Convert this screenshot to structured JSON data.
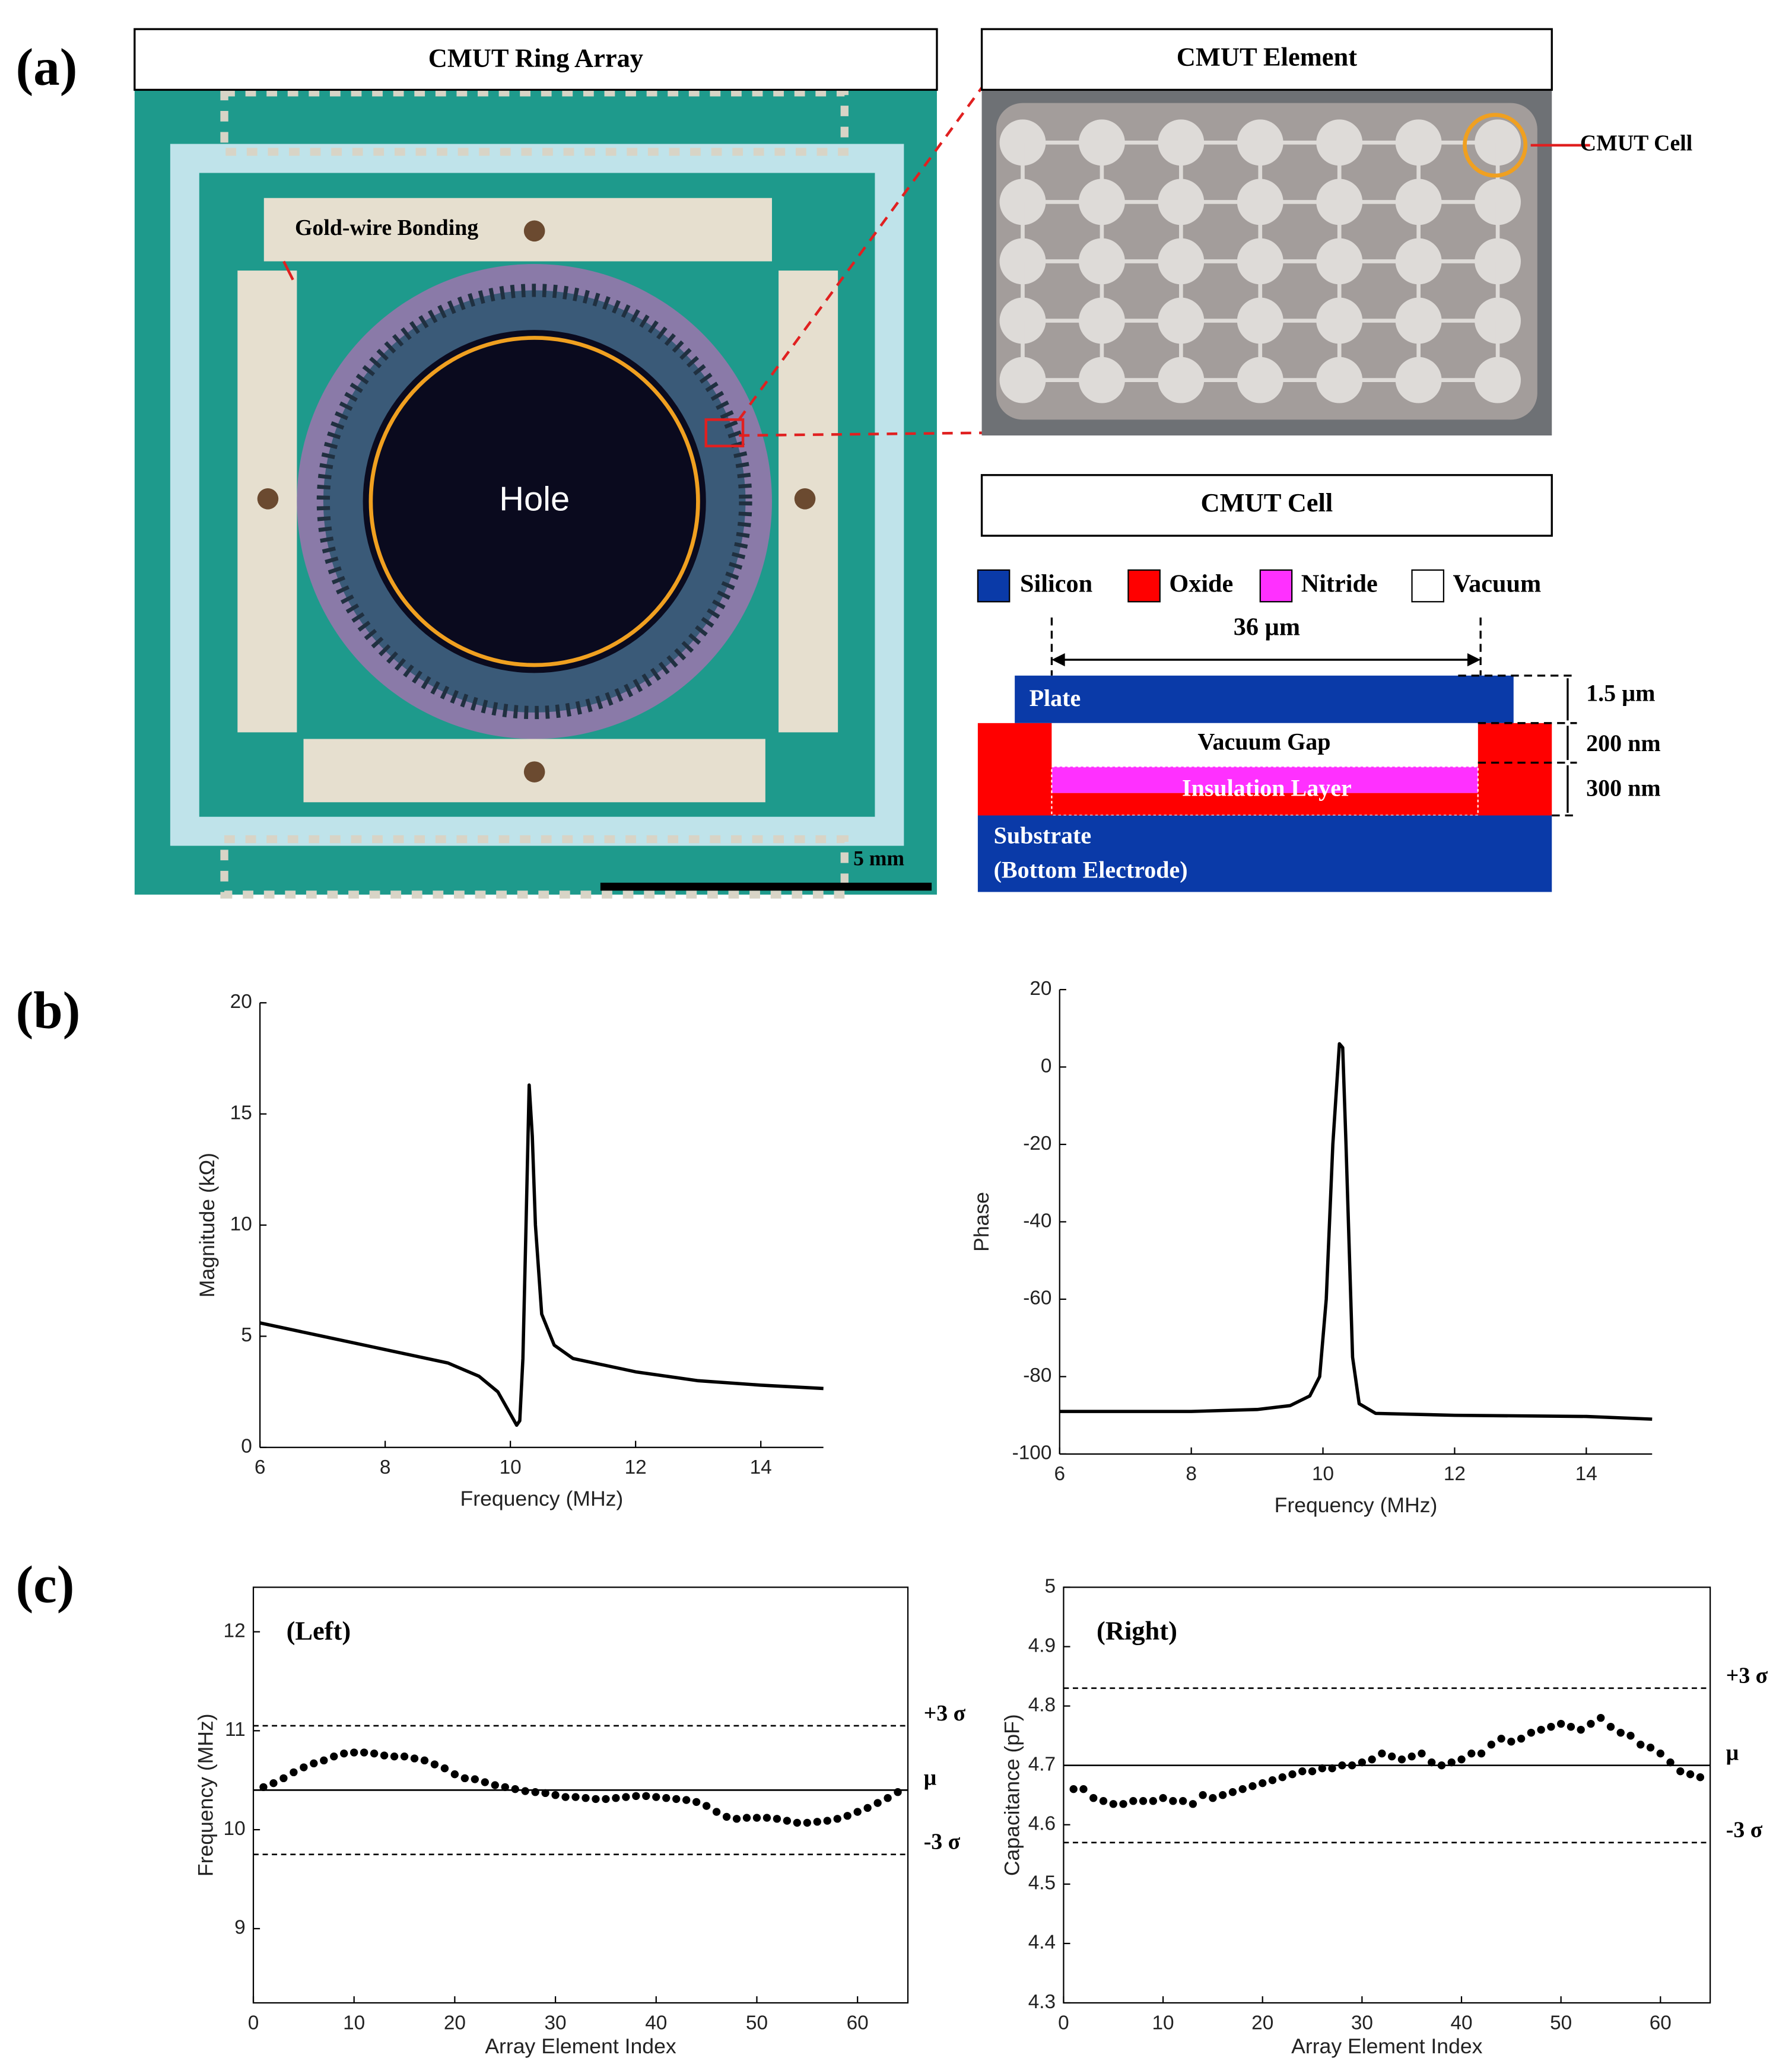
{
  "panel_labels": [
    "(a)",
    "(b)",
    "(c)"
  ],
  "figure_a": {
    "ring_title": "CMUT Ring Array",
    "bonding_label": "Gold-wire Bonding",
    "hole_label": "Hole",
    "scale_label": "5 mm",
    "element_title": "CMUT Element",
    "element_cell_label": "CMUT Cell",
    "cell_title": "CMUT Cell",
    "legend": [
      "Silicon",
      "Oxide",
      "Nitride",
      "Vacuum"
    ],
    "width_label": "36 µm",
    "plate_thickness": "1.5 µm",
    "gap_thickness": "200 nm",
    "insulation_thickness": "300 nm",
    "plate": "Plate",
    "vacuum_gap": "Vacuum Gap",
    "insulation": "Insulation Layer",
    "substrate": "Substrate",
    "substrate_sub": "(Bottom Electrode)"
  },
  "chart_data": [
    {
      "type": "line",
      "xlabel": "Frequency (MHz)",
      "ylabel": "Magnitude (kΩ)",
      "color": "#000000",
      "frame": false,
      "x": [
        6,
        7,
        8,
        9,
        9.5,
        9.8,
        10,
        10.1,
        10.15,
        10.2,
        10.25,
        10.3,
        10.35,
        10.4,
        10.5,
        10.7,
        11,
        12,
        13,
        14,
        15
      ],
      "values": [
        5.6,
        5.0,
        4.4,
        3.8,
        3.2,
        2.5,
        1.5,
        1.0,
        1.2,
        4,
        10,
        16.3,
        14,
        10,
        6,
        4.6,
        4.0,
        3.4,
        3.0,
        2.8,
        2.65
      ],
      "xlim": [
        6,
        15
      ],
      "xticks": [
        6,
        8,
        10,
        12,
        14
      ],
      "ylim": [
        0,
        20
      ],
      "yticks": [
        0,
        5,
        10,
        15,
        20
      ]
    },
    {
      "type": "line",
      "xlabel": "Frequency (MHz)",
      "ylabel": "Phase",
      "color": "#000000",
      "frame": false,
      "x": [
        6,
        8,
        9,
        9.5,
        9.8,
        9.95,
        10.05,
        10.15,
        10.25,
        10.3,
        10.35,
        10.45,
        10.55,
        10.8,
        12,
        14,
        15
      ],
      "values": [
        -89,
        -89,
        -88.5,
        -87.5,
        -85,
        -80,
        -60,
        -20,
        6,
        5,
        -20,
        -75,
        -87,
        -89.5,
        -90,
        -90.3,
        -91
      ],
      "xlim": [
        6,
        15
      ],
      "xticks": [
        6,
        8,
        10,
        12,
        14
      ],
      "ylim": [
        -100,
        20
      ],
      "yticks": [
        -100,
        -80,
        -60,
        -40,
        -20,
        0,
        20
      ]
    },
    {
      "type": "scatter",
      "xlabel": "Array Element Index",
      "ylabel": "Frequency (MHz)",
      "annotation": "(Left)",
      "color": "#000000",
      "frame": true,
      "x": [
        1,
        2,
        3,
        4,
        5,
        6,
        7,
        8,
        9,
        10,
        11,
        12,
        13,
        14,
        15,
        16,
        17,
        18,
        19,
        20,
        21,
        22,
        23,
        24,
        25,
        26,
        27,
        28,
        29,
        30,
        31,
        32,
        33,
        34,
        35,
        36,
        37,
        38,
        39,
        40,
        41,
        42,
        43,
        44,
        45,
        46,
        47,
        48,
        49,
        50,
        51,
        52,
        53,
        54,
        55,
        56,
        57,
        58,
        59,
        60,
        61,
        62,
        63,
        64
      ],
      "values": [
        10.43,
        10.47,
        10.52,
        10.58,
        10.63,
        10.67,
        10.7,
        10.74,
        10.77,
        10.78,
        10.78,
        10.77,
        10.75,
        10.74,
        10.74,
        10.72,
        10.7,
        10.66,
        10.62,
        10.56,
        10.52,
        10.51,
        10.48,
        10.45,
        10.43,
        10.41,
        10.39,
        10.38,
        10.37,
        10.35,
        10.33,
        10.33,
        10.32,
        10.31,
        10.31,
        10.32,
        10.33,
        10.34,
        10.34,
        10.33,
        10.32,
        10.31,
        10.3,
        10.28,
        10.24,
        10.18,
        10.13,
        10.11,
        10.12,
        10.12,
        10.12,
        10.11,
        10.09,
        10.07,
        10.07,
        10.08,
        10.09,
        10.11,
        10.14,
        10.18,
        10.22,
        10.27,
        10.32,
        10.38
      ],
      "hlines": [
        {
          "value": 11.05,
          "label": "+3 σ",
          "style": "dashed"
        },
        {
          "value": 10.4,
          "label": "μ",
          "style": "solid"
        },
        {
          "value": 9.75,
          "label": "-3 σ",
          "style": "dashed"
        }
      ],
      "xlim": [
        0,
        65
      ],
      "xticks": [
        0,
        10,
        20,
        30,
        40,
        50,
        60
      ],
      "ylim": [
        8.25,
        12.45
      ],
      "yticks": [
        9,
        10,
        11,
        12
      ]
    },
    {
      "type": "scatter",
      "xlabel": "Array Element Index",
      "ylabel": "Capacitance (pF)",
      "annotation": "(Right)",
      "color": "#000000",
      "frame": true,
      "x": [
        1,
        2,
        3,
        4,
        5,
        6,
        7,
        8,
        9,
        10,
        11,
        12,
        13,
        14,
        15,
        16,
        17,
        18,
        19,
        20,
        21,
        22,
        23,
        24,
        25,
        26,
        27,
        28,
        29,
        30,
        31,
        32,
        33,
        34,
        35,
        36,
        37,
        38,
        39,
        40,
        41,
        42,
        43,
        44,
        45,
        46,
        47,
        48,
        49,
        50,
        51,
        52,
        53,
        54,
        55,
        56,
        57,
        58,
        59,
        60,
        61,
        62,
        63,
        64
      ],
      "values": [
        4.66,
        4.66,
        4.645,
        4.64,
        4.635,
        4.635,
        4.64,
        4.64,
        4.64,
        4.645,
        4.64,
        4.64,
        4.635,
        4.65,
        4.645,
        4.65,
        4.655,
        4.66,
        4.665,
        4.67,
        4.675,
        4.68,
        4.685,
        4.69,
        4.69,
        4.695,
        4.695,
        4.7,
        4.7,
        4.705,
        4.71,
        4.72,
        4.715,
        4.71,
        4.715,
        4.72,
        4.705,
        4.7,
        4.705,
        4.71,
        4.72,
        4.72,
        4.735,
        4.745,
        4.74,
        4.745,
        4.755,
        4.76,
        4.765,
        4.77,
        4.765,
        4.76,
        4.77,
        4.78,
        4.765,
        4.755,
        4.75,
        4.735,
        4.73,
        4.72,
        4.705,
        4.69,
        4.685,
        4.68
      ],
      "hlines": [
        {
          "value": 4.83,
          "label": "+3 σ",
          "style": "dashed"
        },
        {
          "value": 4.7,
          "label": "μ",
          "style": "solid"
        },
        {
          "value": 4.57,
          "label": "-3 σ",
          "style": "dashed"
        }
      ],
      "xlim": [
        0,
        65
      ],
      "xticks": [
        0,
        10,
        20,
        30,
        40,
        50,
        60
      ],
      "ylim": [
        4.3,
        5.0
      ],
      "yticks": [
        4.3,
        4.4,
        4.5,
        4.6,
        4.7,
        4.8,
        4.9,
        5.0
      ]
    }
  ]
}
